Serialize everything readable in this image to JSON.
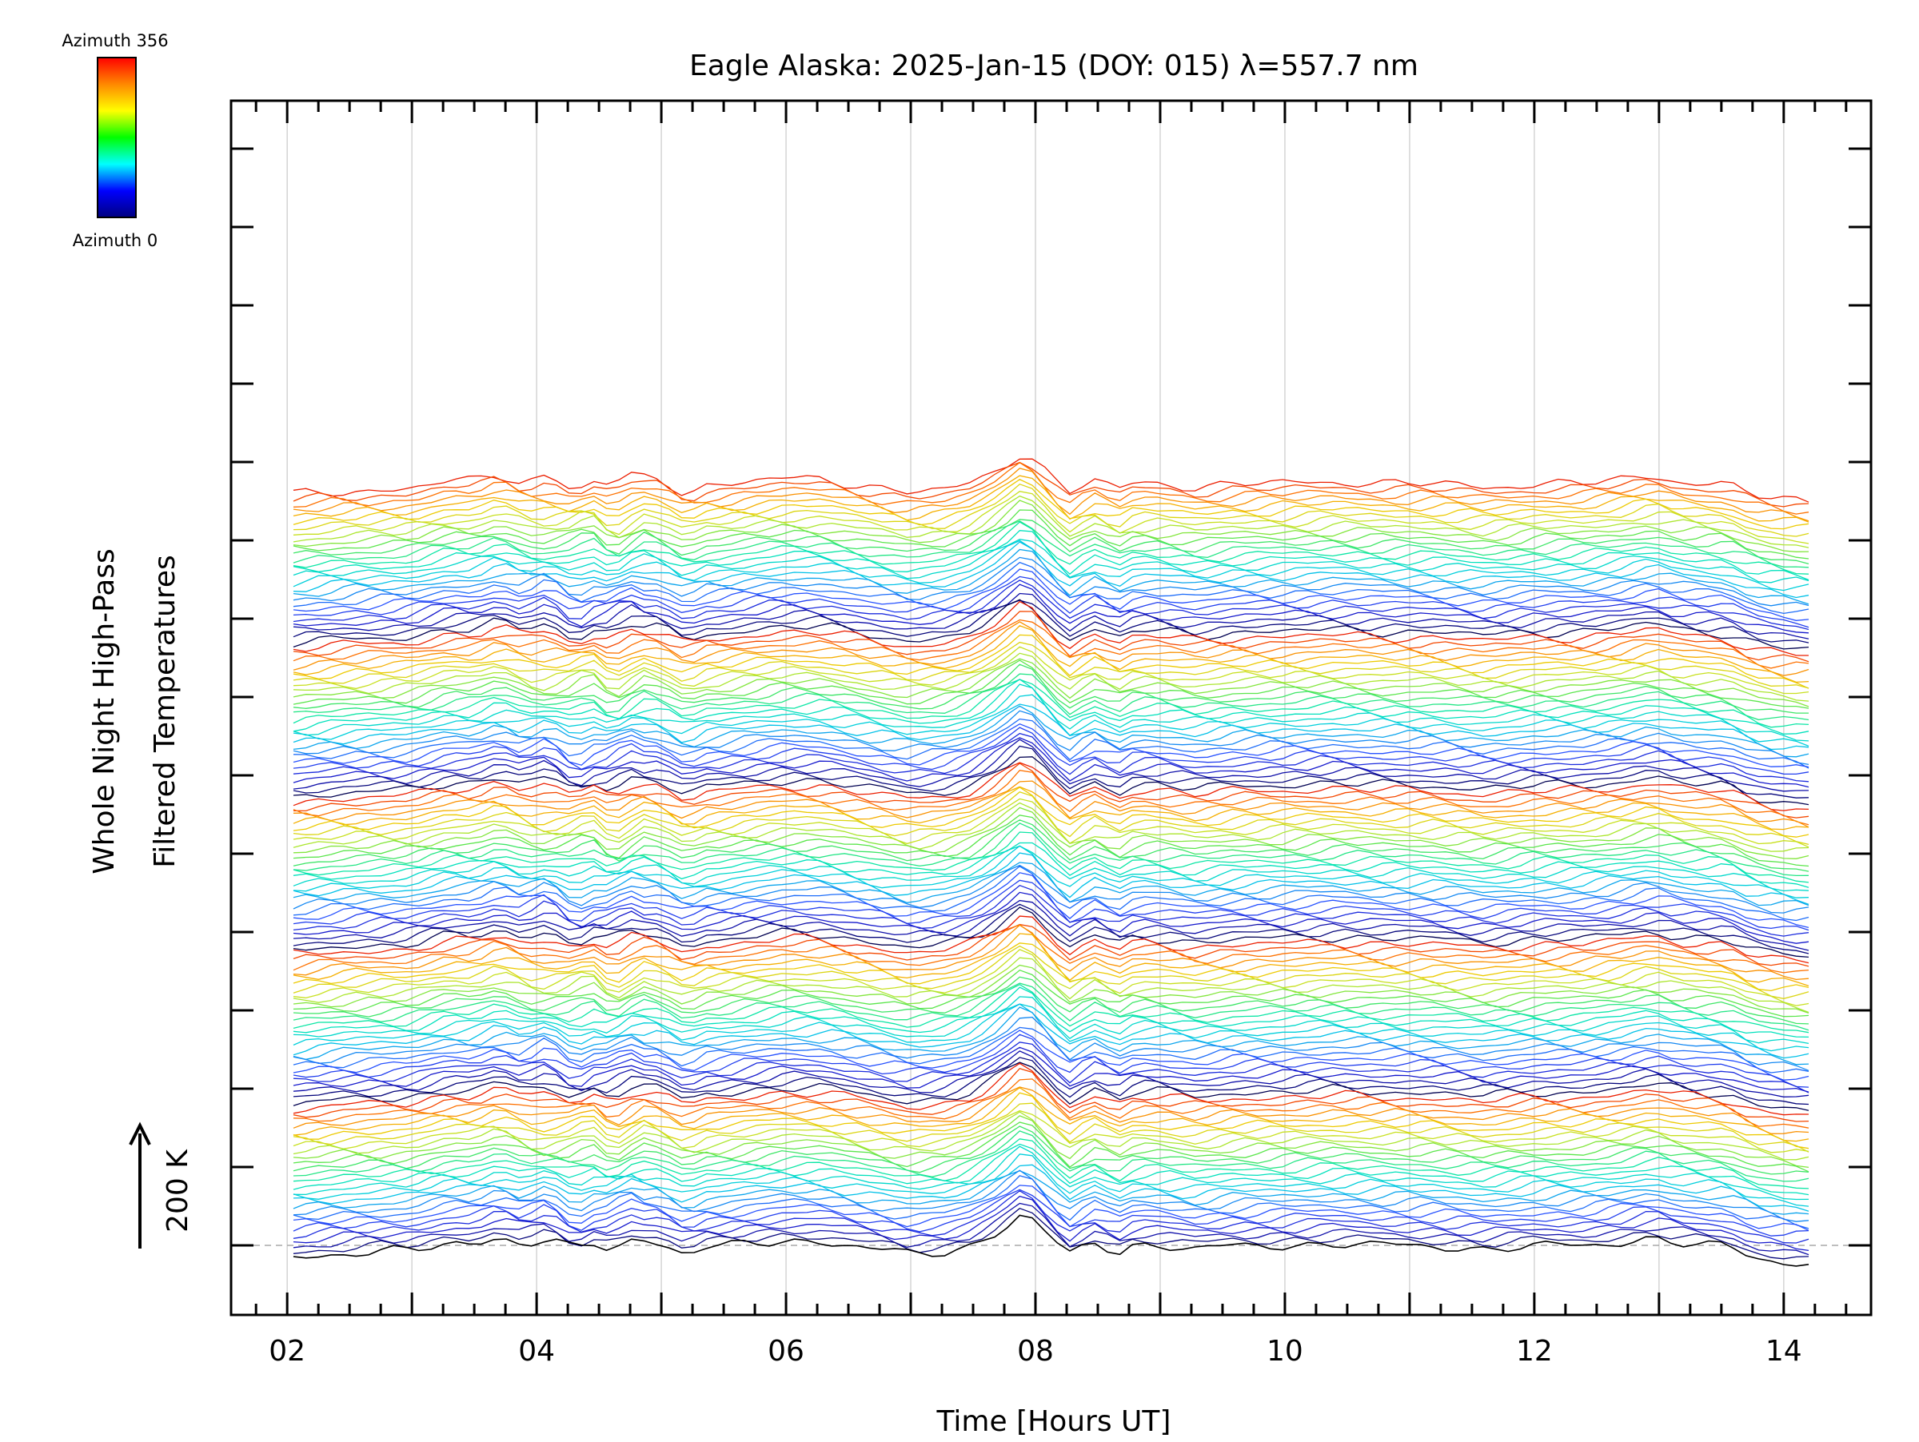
{
  "chart_data": {
    "type": "line",
    "title": "Eagle Alaska: 2025-Jan-15 (DOY: 015) λ=557.7 nm",
    "xlabel": "Time [Hours UT]",
    "ylabel_line1": "Whole Night High-Pass",
    "ylabel_line2": "Filtered Temperatures",
    "scale_label": "200 K",
    "colorbar": {
      "top_label": "Azimuth 356",
      "bottom_label": "Azimuth 0",
      "colors": [
        "#ff0000",
        "#ff8800",
        "#ffff00",
        "#00ff00",
        "#00ffff",
        "#0000ff",
        "#000080"
      ]
    },
    "x_ticks": [
      "02",
      "04",
      "06",
      "08",
      "10",
      "12",
      "14"
    ],
    "x_tick_values": [
      2,
      4,
      6,
      8,
      10,
      12,
      14
    ],
    "xlim": [
      1.55,
      14.7
    ],
    "data_xlim": [
      2.05,
      14.2
    ],
    "grid": true,
    "vertical_gridlines": [
      2,
      3,
      4,
      5,
      6,
      7,
      8,
      9,
      10,
      11,
      12,
      13,
      14
    ],
    "traces": {
      "count": 140,
      "azimuth_start": 0,
      "azimuth_step": 2.56,
      "trace_offset_K": 14,
      "spectrum_period": 28,
      "sample_count": 122
    },
    "series": [
      {
        "role": "bottom-trace",
        "x": [
          2.05,
          2.5,
          3.0,
          3.3,
          3.5,
          3.7,
          3.9,
          4.1,
          4.3,
          4.45,
          4.6,
          4.8,
          5.0,
          5.2,
          5.35,
          5.5,
          5.7,
          6.0,
          6.3,
          6.6,
          7.0,
          7.3,
          7.5,
          7.7,
          7.9,
          8.0,
          8.15,
          8.3,
          8.4,
          8.5,
          8.65,
          8.8,
          9.0,
          9.3,
          9.6,
          10.0,
          10.4,
          10.8,
          11.2,
          11.6,
          12.0,
          12.4,
          12.7,
          12.95,
          13.15,
          13.35,
          13.55,
          13.75,
          13.95,
          14.2
        ],
        "y": [
          -30,
          -20,
          -14,
          6,
          4,
          24,
          2,
          10,
          -10,
          8,
          -12,
          18,
          8,
          -24,
          -6,
          -4,
          4,
          12,
          10,
          -4,
          -24,
          -16,
          0,
          35,
          82,
          60,
          8,
          -30,
          2,
          10,
          -20,
          2,
          0,
          -10,
          -2,
          0,
          4,
          0,
          -2,
          -10,
          -2,
          0,
          8,
          20,
          6,
          0,
          -4,
          -30,
          -40,
          -48
        ]
      }
    ]
  }
}
